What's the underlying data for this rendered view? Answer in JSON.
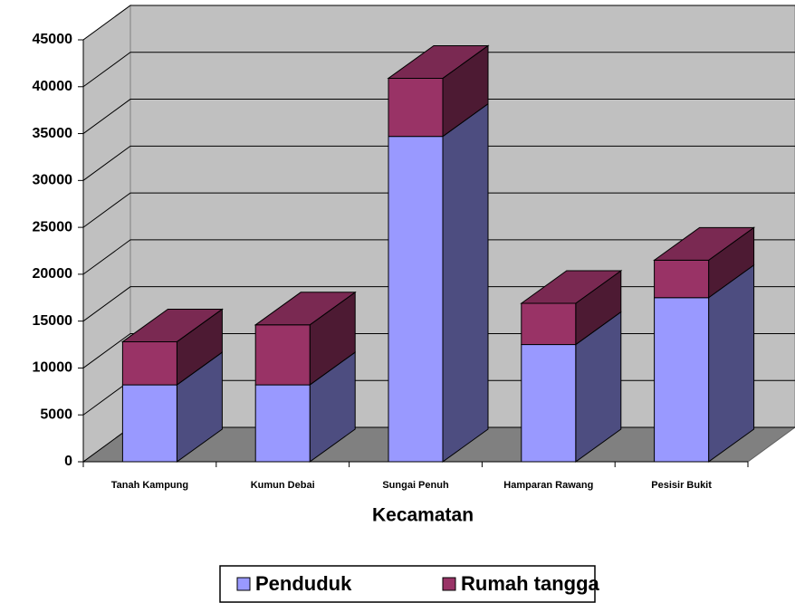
{
  "chart_data": {
    "type": "bar3d_stacked",
    "x_label": "Kecamatan",
    "categories": [
      "Tanah Kampung",
      "Kumun Debai",
      "Sungai Penuh",
      "Hamparan Rawang",
      "Pesisir Bukit"
    ],
    "series": [
      {
        "name": "Penduduk",
        "color": "#9999ff",
        "values": [
          8200,
          8200,
          34700,
          12500,
          17500
        ]
      },
      {
        "name": "Rumah tangga",
        "color": "#993366",
        "values": [
          4600,
          6400,
          6200,
          4400,
          4000
        ]
      }
    ],
    "ylim": [
      0,
      45000
    ],
    "yticks": [
      0,
      5000,
      10000,
      15000,
      20000,
      25000,
      30000,
      35000,
      40000,
      45000
    ],
    "grid": true
  }
}
